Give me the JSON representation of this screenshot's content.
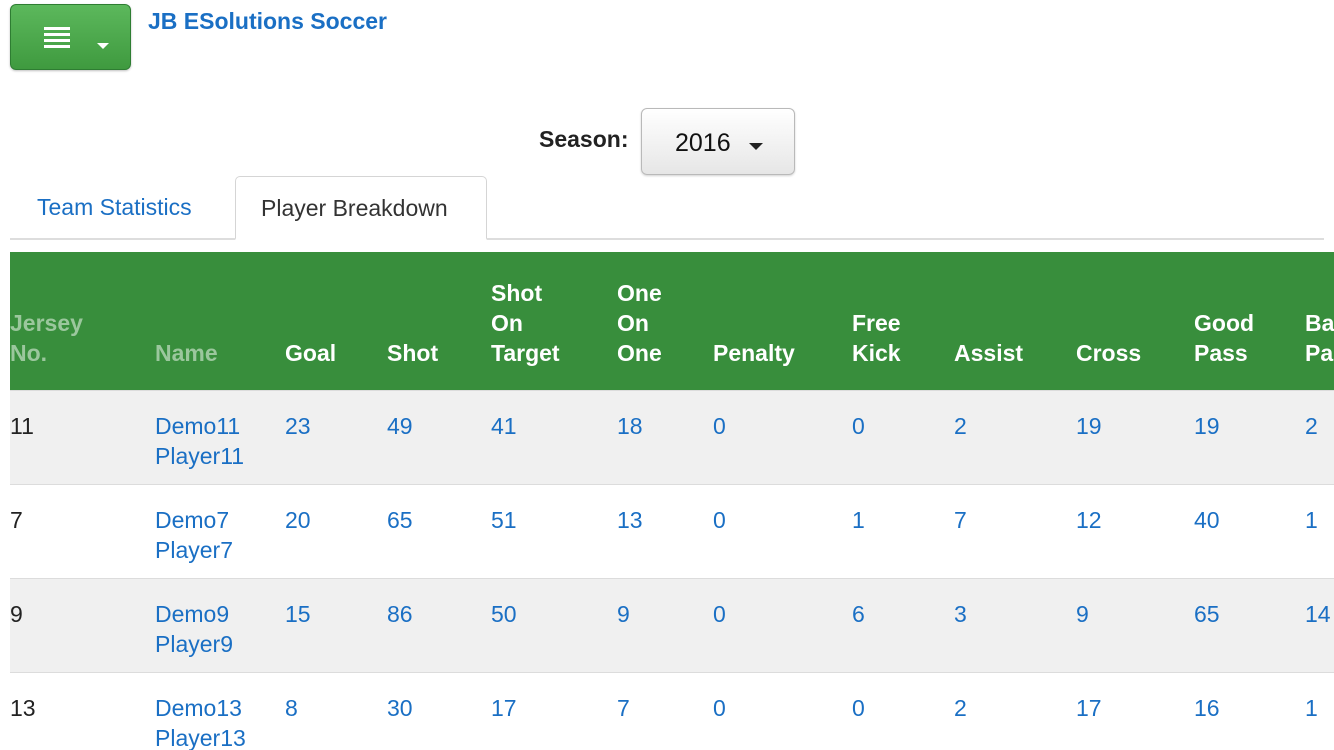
{
  "app": {
    "title": "JB ESolutions Soccer",
    "menu_icon": "list-icon",
    "menu_caret_icon": "caret-down-icon"
  },
  "colors": {
    "brand_green": "#3f9a3f",
    "header_green": "#388e3c",
    "link_blue": "#1a6fc4"
  },
  "season": {
    "label": "Season:",
    "selected": "2016"
  },
  "tabs": [
    {
      "label": "Team Statistics",
      "active": false
    },
    {
      "label": "Player Breakdown",
      "active": true
    }
  ],
  "table": {
    "columns": [
      {
        "line1": "Jersey",
        "line2": "No.",
        "line3": ""
      },
      {
        "line1": "Name",
        "line2": "",
        "line3": ""
      },
      {
        "line1": "Goal",
        "line2": "",
        "line3": ""
      },
      {
        "line1": "Shot",
        "line2": "",
        "line3": ""
      },
      {
        "line1": "Shot",
        "line2": "On",
        "line3": "Target"
      },
      {
        "line1": "One",
        "line2": "On",
        "line3": "One"
      },
      {
        "line1": "Penalty",
        "line2": "",
        "line3": ""
      },
      {
        "line1": "Free",
        "line2": "Kick",
        "line3": ""
      },
      {
        "line1": "Assist",
        "line2": "",
        "line3": ""
      },
      {
        "line1": "Cross",
        "line2": "",
        "line3": ""
      },
      {
        "line1": "Good",
        "line2": "Pass",
        "line3": ""
      },
      {
        "line1": "Ba",
        "line2": "Pa",
        "line3": ""
      }
    ],
    "rows": [
      {
        "jersey": "11",
        "first": "Demo11",
        "last": "Player11",
        "goal": "23",
        "shot": "49",
        "shot_on_target": "41",
        "one_on_one": "18",
        "penalty": "0",
        "free_kick": "0",
        "assist": "2",
        "cross": "19",
        "good_pass": "19",
        "bad_pass": "2"
      },
      {
        "jersey": "7",
        "first": "Demo7",
        "last": "Player7",
        "goal": "20",
        "shot": "65",
        "shot_on_target": "51",
        "one_on_one": "13",
        "penalty": "0",
        "free_kick": "1",
        "assist": "7",
        "cross": "12",
        "good_pass": "40",
        "bad_pass": "1"
      },
      {
        "jersey": "9",
        "first": "Demo9",
        "last": "Player9",
        "goal": "15",
        "shot": "86",
        "shot_on_target": "50",
        "one_on_one": "9",
        "penalty": "0",
        "free_kick": "6",
        "assist": "3",
        "cross": "9",
        "good_pass": "65",
        "bad_pass": "14"
      },
      {
        "jersey": "13",
        "first": "Demo13",
        "last": "Player13",
        "goal": "8",
        "shot": "30",
        "shot_on_target": "17",
        "one_on_one": "7",
        "penalty": "0",
        "free_kick": "0",
        "assist": "2",
        "cross": "17",
        "good_pass": "16",
        "bad_pass": "1"
      }
    ]
  }
}
